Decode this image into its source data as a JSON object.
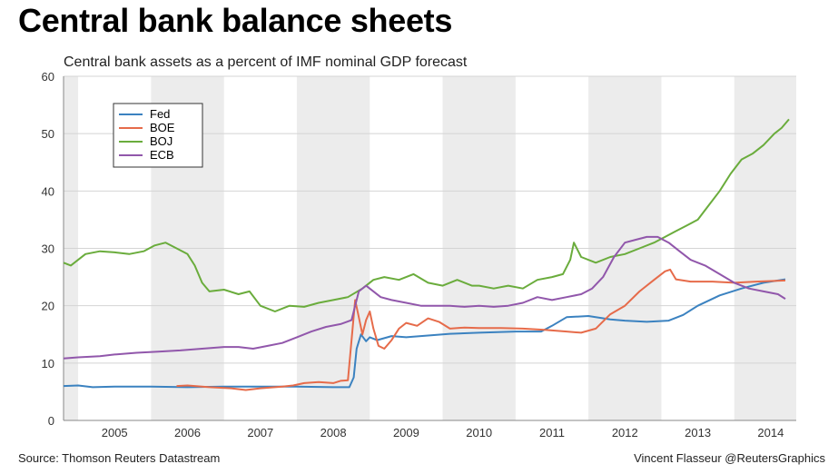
{
  "header": {
    "title": "Central bank balance sheets",
    "subtitle": "Central bank assets as a percent of IMF nominal GDP forecast"
  },
  "footer": {
    "source": "Source: Thomson Reuters Datastream",
    "credit": "Vincent Flasseur @ReutersGraphics"
  },
  "chart_data": {
    "type": "line",
    "title": "Central bank balance sheets",
    "subtitle": "Central bank assets as a percent of IMF nominal GDP forecast",
    "xlabel": "",
    "ylabel": "",
    "xlim": [
      2004.3,
      2014.35
    ],
    "ylim": [
      0,
      60
    ],
    "y_ticks": [
      0,
      10,
      20,
      30,
      40,
      50,
      60
    ],
    "x_ticks": [
      {
        "label": "2005",
        "value": 2005.0
      },
      {
        "label": "2006",
        "value": 2006.0
      },
      {
        "label": "2007",
        "value": 2007.0
      },
      {
        "label": "2008",
        "value": 2008.0
      },
      {
        "label": "2009",
        "value": 2009.0
      },
      {
        "label": "2010",
        "value": 2010.0
      },
      {
        "label": "2011",
        "value": 2011.0
      },
      {
        "label": "2012",
        "value": 2012.0
      },
      {
        "label": "2013",
        "value": 2013.0
      },
      {
        "label": "2014",
        "value": 2014.0
      }
    ],
    "shaded_bands": [
      [
        2004.3,
        2004.5
      ],
      [
        2005.5,
        2006.5
      ],
      [
        2007.5,
        2008.5
      ],
      [
        2009.5,
        2010.5
      ],
      [
        2011.5,
        2012.5
      ],
      [
        2013.5,
        2014.35
      ]
    ],
    "grid": true,
    "legend": {
      "placement": "top-left"
    },
    "series": [
      {
        "name": "Fed",
        "color": "#3b82c0",
        "points": [
          [
            2004.3,
            6.0
          ],
          [
            2004.5,
            6.1
          ],
          [
            2004.7,
            5.8
          ],
          [
            2005.0,
            5.9
          ],
          [
            2005.5,
            5.9
          ],
          [
            2006.0,
            5.8
          ],
          [
            2006.5,
            5.9
          ],
          [
            2007.0,
            5.9
          ],
          [
            2007.5,
            5.9
          ],
          [
            2008.0,
            5.8
          ],
          [
            2008.22,
            5.8
          ],
          [
            2008.28,
            7.5
          ],
          [
            2008.32,
            12.5
          ],
          [
            2008.38,
            15.0
          ],
          [
            2008.45,
            13.8
          ],
          [
            2008.5,
            14.5
          ],
          [
            2008.6,
            14.0
          ],
          [
            2008.8,
            14.7
          ],
          [
            2009.0,
            14.5
          ],
          [
            2009.3,
            14.8
          ],
          [
            2009.6,
            15.1
          ],
          [
            2010.0,
            15.3
          ],
          [
            2010.5,
            15.5
          ],
          [
            2010.85,
            15.5
          ],
          [
            2011.0,
            16.5
          ],
          [
            2011.2,
            18.0
          ],
          [
            2011.5,
            18.2
          ],
          [
            2011.8,
            17.6
          ],
          [
            2012.0,
            17.4
          ],
          [
            2012.3,
            17.2
          ],
          [
            2012.6,
            17.4
          ],
          [
            2012.8,
            18.4
          ],
          [
            2013.0,
            20.0
          ],
          [
            2013.3,
            21.8
          ],
          [
            2013.6,
            23.0
          ],
          [
            2013.9,
            24.0
          ],
          [
            2014.1,
            24.4
          ],
          [
            2014.2,
            24.6
          ]
        ]
      },
      {
        "name": "BOE",
        "color": "#e66b4a",
        "points": [
          [
            2005.85,
            6.0
          ],
          [
            2006.0,
            6.1
          ],
          [
            2006.3,
            5.8
          ],
          [
            2006.6,
            5.6
          ],
          [
            2006.8,
            5.3
          ],
          [
            2007.0,
            5.6
          ],
          [
            2007.3,
            5.9
          ],
          [
            2007.45,
            6.1
          ],
          [
            2007.6,
            6.5
          ],
          [
            2007.8,
            6.7
          ],
          [
            2008.0,
            6.5
          ],
          [
            2008.1,
            6.9
          ],
          [
            2008.2,
            7.0
          ],
          [
            2008.25,
            14.0
          ],
          [
            2008.3,
            21.0
          ],
          [
            2008.35,
            18.0
          ],
          [
            2008.4,
            15.0
          ],
          [
            2008.45,
            17.5
          ],
          [
            2008.5,
            19.0
          ],
          [
            2008.55,
            16.0
          ],
          [
            2008.62,
            13.0
          ],
          [
            2008.7,
            12.5
          ],
          [
            2008.8,
            14.0
          ],
          [
            2008.9,
            16.0
          ],
          [
            2009.0,
            17.0
          ],
          [
            2009.15,
            16.5
          ],
          [
            2009.3,
            17.8
          ],
          [
            2009.45,
            17.2
          ],
          [
            2009.6,
            16.0
          ],
          [
            2009.8,
            16.2
          ],
          [
            2010.0,
            16.1
          ],
          [
            2010.3,
            16.1
          ],
          [
            2010.6,
            16.0
          ],
          [
            2010.9,
            15.8
          ],
          [
            2011.2,
            15.5
          ],
          [
            2011.4,
            15.3
          ],
          [
            2011.6,
            16.0
          ],
          [
            2011.8,
            18.5
          ],
          [
            2012.0,
            20.0
          ],
          [
            2012.2,
            22.5
          ],
          [
            2012.4,
            24.5
          ],
          [
            2012.55,
            26.0
          ],
          [
            2012.62,
            26.3
          ],
          [
            2012.7,
            24.6
          ],
          [
            2012.9,
            24.2
          ],
          [
            2013.2,
            24.2
          ],
          [
            2013.5,
            24.0
          ],
          [
            2013.8,
            24.2
          ],
          [
            2014.0,
            24.3
          ],
          [
            2014.2,
            24.4
          ]
        ]
      },
      {
        "name": "BOJ",
        "color": "#6aac3c",
        "points": [
          [
            2004.3,
            27.5
          ],
          [
            2004.4,
            27.0
          ],
          [
            2004.5,
            28.0
          ],
          [
            2004.6,
            29.0
          ],
          [
            2004.8,
            29.5
          ],
          [
            2005.0,
            29.3
          ],
          [
            2005.2,
            29.0
          ],
          [
            2005.4,
            29.5
          ],
          [
            2005.55,
            30.5
          ],
          [
            2005.7,
            31.0
          ],
          [
            2005.85,
            30.0
          ],
          [
            2006.0,
            29.0
          ],
          [
            2006.1,
            27.0
          ],
          [
            2006.2,
            24.0
          ],
          [
            2006.3,
            22.5
          ],
          [
            2006.5,
            22.8
          ],
          [
            2006.7,
            22.0
          ],
          [
            2006.85,
            22.5
          ],
          [
            2007.0,
            20.0
          ],
          [
            2007.2,
            19.0
          ],
          [
            2007.4,
            20.0
          ],
          [
            2007.6,
            19.8
          ],
          [
            2007.8,
            20.5
          ],
          [
            2008.0,
            21.0
          ],
          [
            2008.2,
            21.5
          ],
          [
            2008.4,
            23.0
          ],
          [
            2008.55,
            24.5
          ],
          [
            2008.7,
            25.0
          ],
          [
            2008.9,
            24.5
          ],
          [
            2009.1,
            25.5
          ],
          [
            2009.3,
            24.0
          ],
          [
            2009.5,
            23.5
          ],
          [
            2009.7,
            24.5
          ],
          [
            2009.9,
            23.5
          ],
          [
            2010.0,
            23.5
          ],
          [
            2010.2,
            23.0
          ],
          [
            2010.4,
            23.5
          ],
          [
            2010.6,
            23.0
          ],
          [
            2010.8,
            24.5
          ],
          [
            2011.0,
            25.0
          ],
          [
            2011.15,
            25.5
          ],
          [
            2011.25,
            28.0
          ],
          [
            2011.3,
            31.0
          ],
          [
            2011.4,
            28.5
          ],
          [
            2011.6,
            27.5
          ],
          [
            2011.8,
            28.5
          ],
          [
            2012.0,
            29.0
          ],
          [
            2012.2,
            30.0
          ],
          [
            2012.4,
            31.0
          ],
          [
            2012.55,
            32.0
          ],
          [
            2012.7,
            33.0
          ],
          [
            2012.85,
            34.0
          ],
          [
            2013.0,
            35.0
          ],
          [
            2013.15,
            37.5
          ],
          [
            2013.3,
            40.0
          ],
          [
            2013.45,
            43.0
          ],
          [
            2013.6,
            45.5
          ],
          [
            2013.75,
            46.5
          ],
          [
            2013.9,
            48.0
          ],
          [
            2014.05,
            50.0
          ],
          [
            2014.15,
            51.0
          ],
          [
            2014.25,
            52.5
          ]
        ]
      },
      {
        "name": "ECB",
        "color": "#9157ab",
        "points": [
          [
            2004.3,
            10.8
          ],
          [
            2004.5,
            11.0
          ],
          [
            2004.8,
            11.2
          ],
          [
            2005.0,
            11.5
          ],
          [
            2005.3,
            11.8
          ],
          [
            2005.6,
            12.0
          ],
          [
            2005.9,
            12.2
          ],
          [
            2006.2,
            12.5
          ],
          [
            2006.5,
            12.8
          ],
          [
            2006.7,
            12.8
          ],
          [
            2006.9,
            12.5
          ],
          [
            2007.1,
            13.0
          ],
          [
            2007.3,
            13.5
          ],
          [
            2007.5,
            14.5
          ],
          [
            2007.7,
            15.5
          ],
          [
            2007.9,
            16.3
          ],
          [
            2008.1,
            16.8
          ],
          [
            2008.25,
            17.5
          ],
          [
            2008.35,
            22.5
          ],
          [
            2008.45,
            23.5
          ],
          [
            2008.55,
            22.5
          ],
          [
            2008.65,
            21.5
          ],
          [
            2008.8,
            21.0
          ],
          [
            2009.0,
            20.5
          ],
          [
            2009.2,
            20.0
          ],
          [
            2009.4,
            20.0
          ],
          [
            2009.6,
            20.0
          ],
          [
            2009.8,
            19.8
          ],
          [
            2010.0,
            20.0
          ],
          [
            2010.2,
            19.8
          ],
          [
            2010.4,
            20.0
          ],
          [
            2010.6,
            20.5
          ],
          [
            2010.8,
            21.5
          ],
          [
            2011.0,
            21.0
          ],
          [
            2011.2,
            21.5
          ],
          [
            2011.4,
            22.0
          ],
          [
            2011.55,
            23.0
          ],
          [
            2011.7,
            25.0
          ],
          [
            2011.85,
            28.5
          ],
          [
            2012.0,
            31.0
          ],
          [
            2012.15,
            31.5
          ],
          [
            2012.3,
            32.0
          ],
          [
            2012.45,
            32.0
          ],
          [
            2012.6,
            31.0
          ],
          [
            2012.75,
            29.5
          ],
          [
            2012.9,
            28.0
          ],
          [
            2013.1,
            27.0
          ],
          [
            2013.3,
            25.5
          ],
          [
            2013.5,
            24.0
          ],
          [
            2013.7,
            23.0
          ],
          [
            2013.9,
            22.5
          ],
          [
            2014.1,
            22.0
          ],
          [
            2014.2,
            21.2
          ]
        ]
      }
    ]
  }
}
